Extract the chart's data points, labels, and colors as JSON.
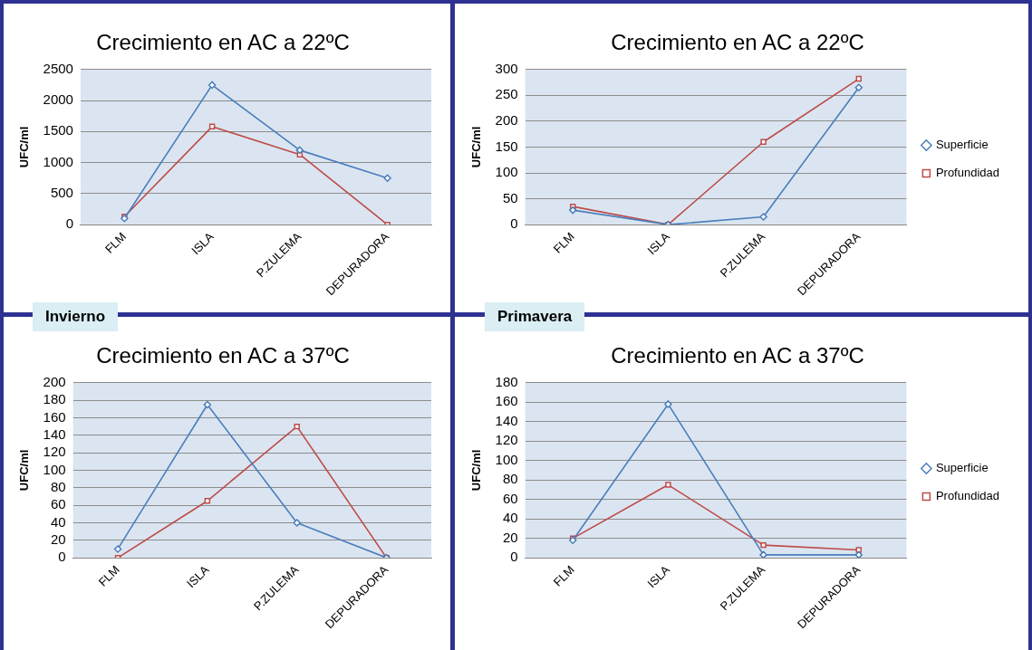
{
  "chart_data": [
    {
      "type": "line",
      "title": "Crecimiento en AC a 22ºC",
      "ylabel": "UFC/ml",
      "categories": [
        "FLM",
        "ISLA",
        "P.ZULEMA",
        "DEPURADORA"
      ],
      "series": [
        {
          "color": "#4a7ebb",
          "marker": "diamond",
          "values": [
            100,
            2250,
            1200,
            750
          ]
        },
        {
          "color": "#be4b48",
          "marker": "square",
          "values": [
            130,
            1580,
            1130,
            0
          ]
        }
      ],
      "ylim": [
        0,
        2500
      ],
      "yticks": [
        0,
        500,
        1000,
        1500,
        2000,
        2500
      ],
      "grid": "y",
      "legend": false
    },
    {
      "type": "line",
      "title": "Crecimiento en AC a 22ºC",
      "ylabel": "UFC/ml",
      "categories": [
        "FLM",
        "ISLA",
        "P.ZULEMA",
        "DEPURADORA"
      ],
      "series": [
        {
          "name": "Superficie",
          "color": "#4a7ebb",
          "marker": "diamond",
          "values": [
            28,
            0,
            15,
            265
          ]
        },
        {
          "name": "Profundidad",
          "color": "#be4b48",
          "marker": "square",
          "values": [
            35,
            0,
            160,
            282
          ]
        }
      ],
      "ylim": [
        0,
        300
      ],
      "yticks": [
        0,
        50,
        100,
        150,
        200,
        250,
        300
      ],
      "grid": "y",
      "legend": "right"
    },
    {
      "type": "line",
      "title": "Crecimiento en AC a 37ºC",
      "ylabel": "UFC/ml",
      "annotations": [
        "Invierno"
      ],
      "categories": [
        "FLM",
        "ISLA",
        "P.ZULEMA",
        "DEPURADORA"
      ],
      "series": [
        {
          "color": "#4a7ebb",
          "marker": "diamond",
          "values": [
            10,
            175,
            40,
            0
          ]
        },
        {
          "color": "#be4b48",
          "marker": "square",
          "values": [
            0,
            65,
            150,
            0
          ]
        }
      ],
      "ylim": [
        0,
        200
      ],
      "yticks": [
        0,
        20,
        40,
        60,
        80,
        100,
        120,
        140,
        160,
        180,
        200
      ],
      "grid": "y",
      "legend": false
    },
    {
      "type": "line",
      "title": "Crecimiento en AC a 37ºC",
      "ylabel": "UFC/ml",
      "annotations": [
        "Primavera"
      ],
      "categories": [
        "FLM",
        "ISLA",
        "P.ZULEMA",
        "DEPURADORA"
      ],
      "series": [
        {
          "name": "Superficie",
          "color": "#4a7ebb",
          "marker": "diamond",
          "values": [
            18,
            158,
            3,
            3
          ]
        },
        {
          "name": "Profundidad",
          "color": "#be4b48",
          "marker": "square",
          "values": [
            20,
            75,
            13,
            8
          ]
        }
      ],
      "ylim": [
        0,
        180
      ],
      "yticks": [
        0,
        20,
        40,
        60,
        80,
        100,
        120,
        140,
        160,
        180
      ],
      "grid": "y",
      "legend": "right"
    }
  ]
}
